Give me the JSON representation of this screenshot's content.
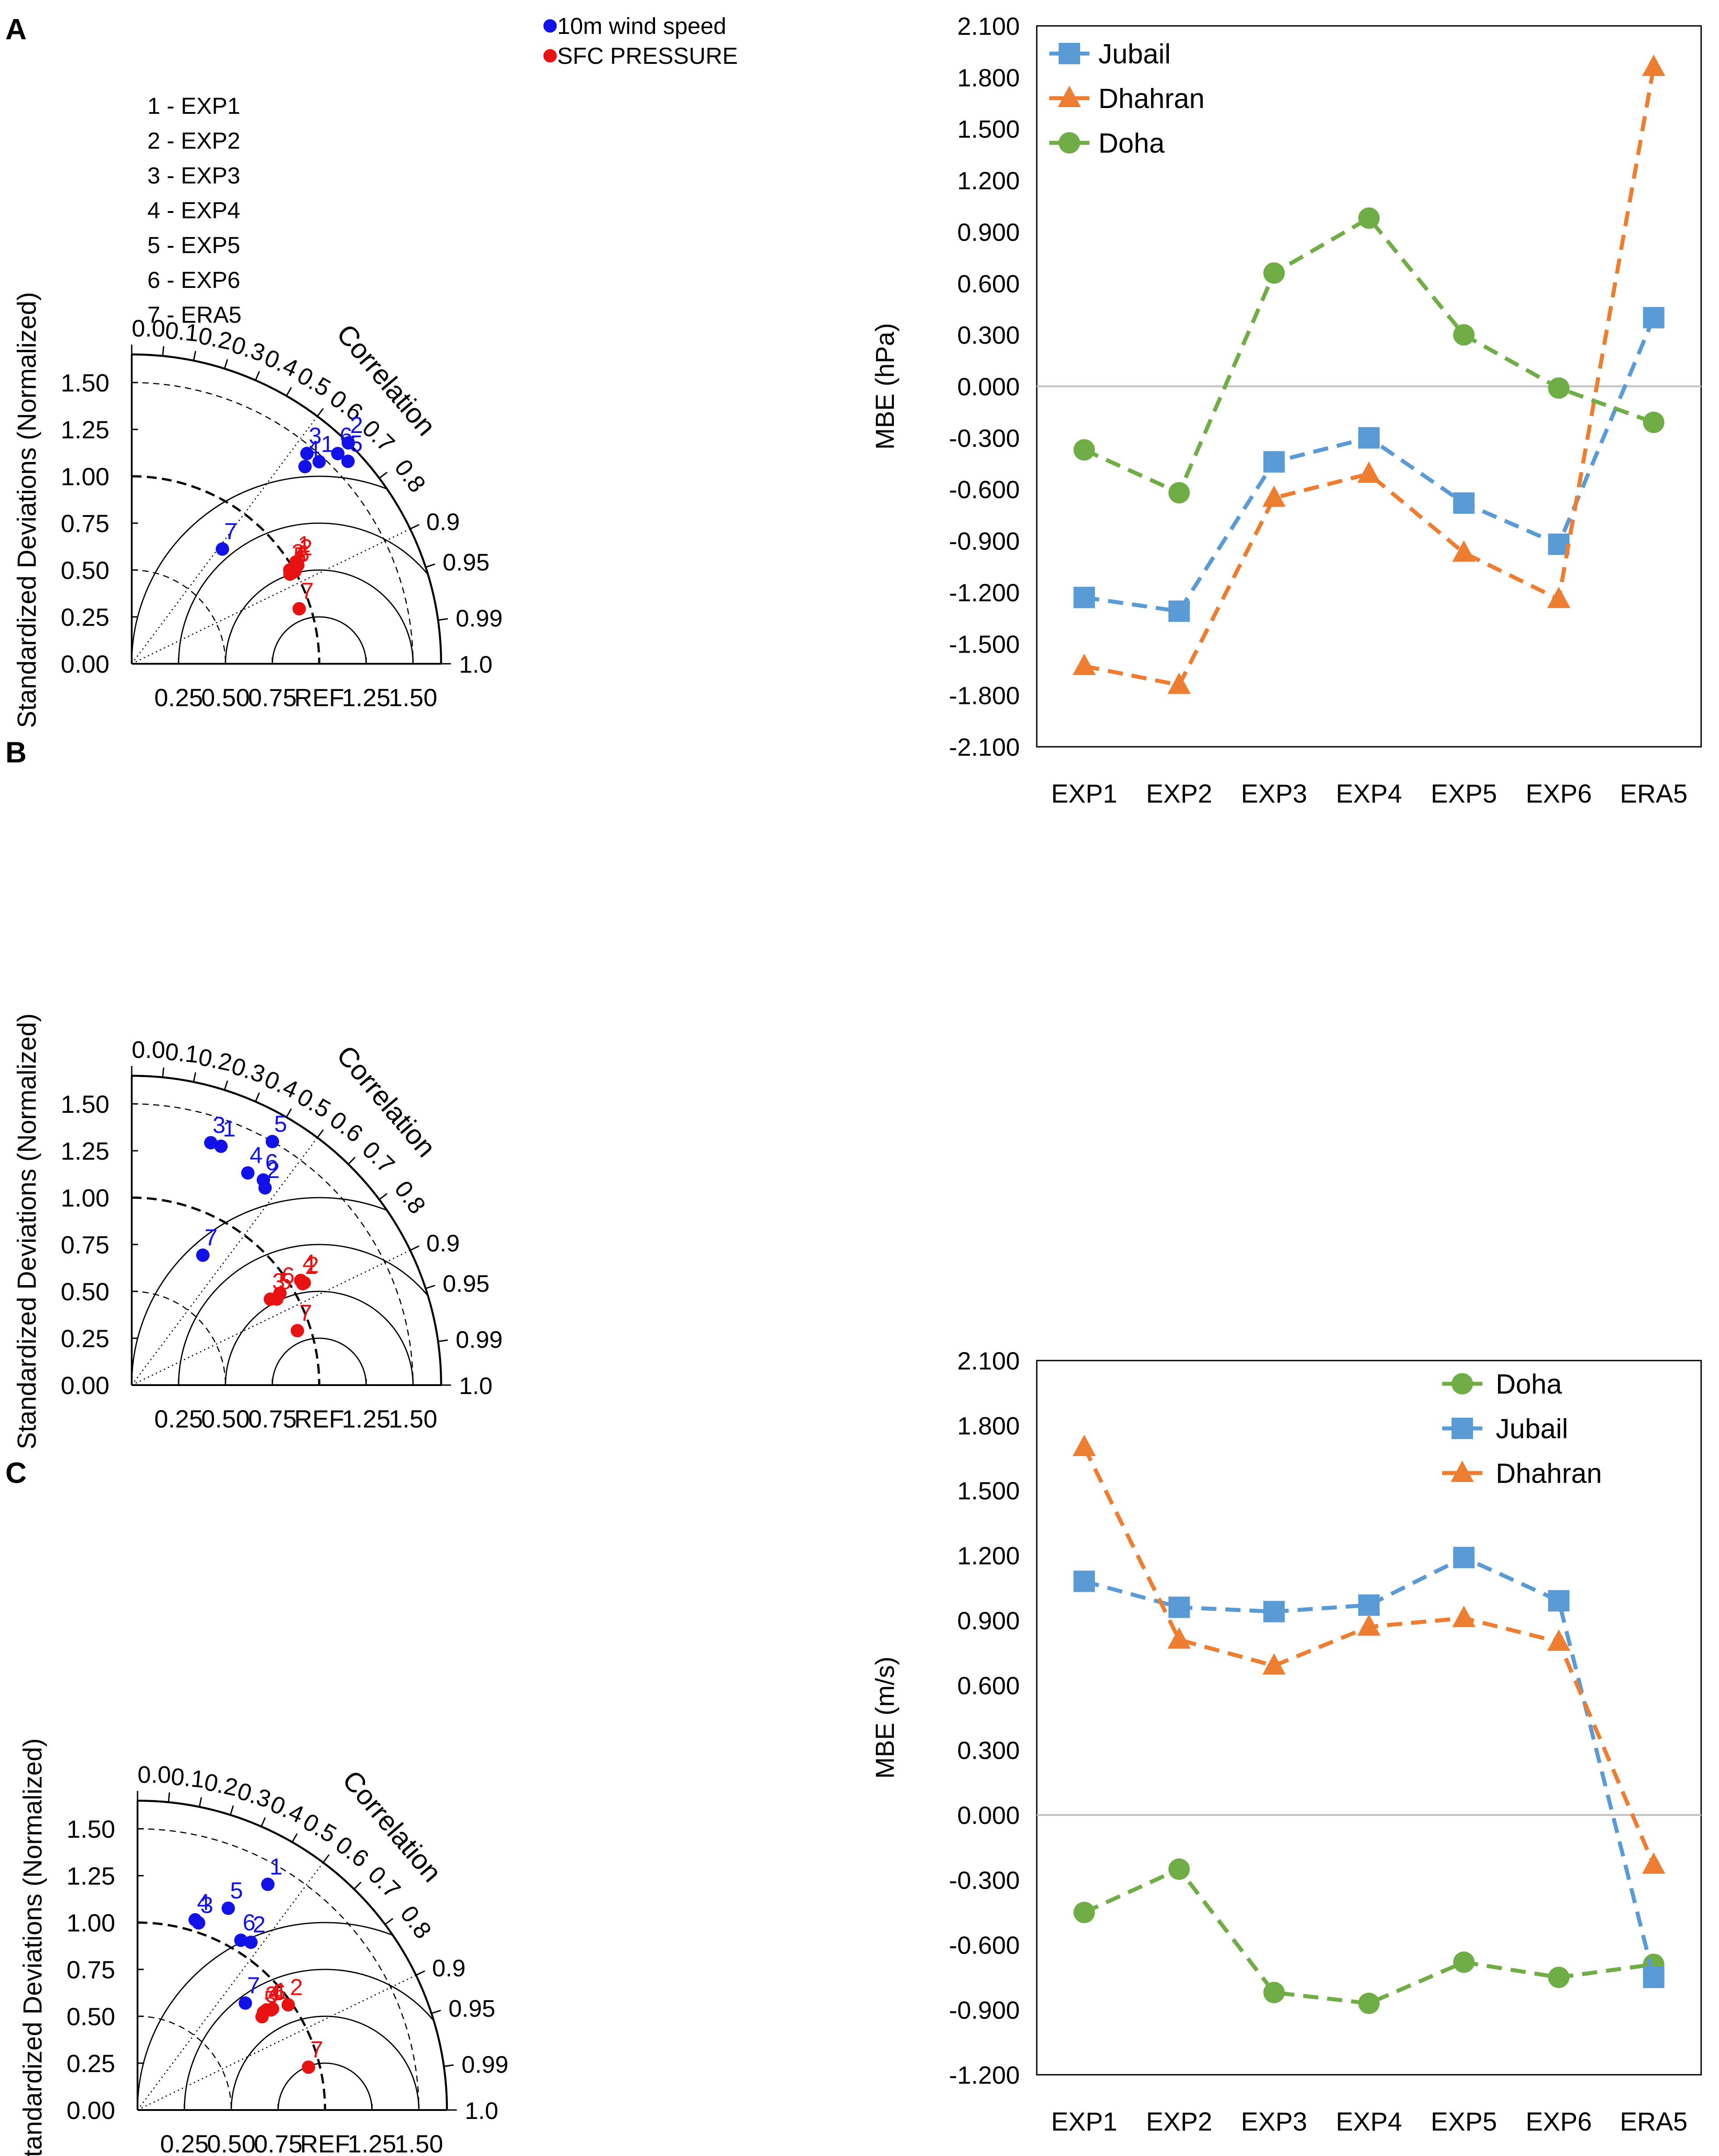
{
  "colors": {
    "wind": "#1212e8",
    "pressure": "#e81212",
    "jubail": "#5b9bd5",
    "dhahran": "#ed7d31",
    "doha": "#70ad47",
    "zero_line": "#bfbfbf"
  },
  "taylor_common": {
    "y_axis_label": "Standardized Deviations (Normalized)",
    "y_ticks": [
      "0.00",
      "0.25",
      "0.50",
      "0.75",
      "1.00",
      "1.25",
      "1.50"
    ],
    "x_ticks": [
      "0.25",
      "0.50",
      "0.75",
      "REF",
      "1.25",
      "1.50"
    ],
    "correlation_title": "Correlation",
    "correlation_ticks": [
      "0.0",
      "0.1",
      "0.2",
      "0.3",
      "0.4",
      "0.5",
      "0.6",
      "0.7",
      "0.8",
      "0.9",
      "0.95",
      "0.99",
      "1.0"
    ],
    "legend_wind": "10m wind speed",
    "legend_pressure": "SFC PRESSURE",
    "model_list": [
      "1 - EXP1",
      "2 - EXP2",
      "3 - EXP3",
      "4 - EXP4",
      "5 - EXP5",
      "6 - EXP6",
      "7 - ERA5"
    ]
  },
  "chart_data": [
    {
      "type": "scatter",
      "subtype": "taylor-diagram",
      "panel_label": "A",
      "series": [
        {
          "name": "10m wind speed",
          "points": [
            {
              "label": "1",
              "corr": 0.68,
              "sd": 1.47
            },
            {
              "label": "2",
              "corr": 0.7,
              "sd": 1.65
            },
            {
              "label": "3",
              "corr": 0.64,
              "sd": 1.46
            },
            {
              "label": "4",
              "corr": 0.66,
              "sd": 1.4
            },
            {
              "label": "5",
              "corr": 0.73,
              "sd": 1.58
            },
            {
              "label": "6",
              "corr": 0.7,
              "sd": 1.57
            },
            {
              "label": "7",
              "corr": 0.62,
              "sd": 0.78
            }
          ]
        },
        {
          "name": "SFC PRESSURE",
          "points": [
            {
              "label": "1",
              "corr": 0.85,
              "sd": 1.03
            },
            {
              "label": "2",
              "corr": 0.86,
              "sd": 1.03
            },
            {
              "label": "3",
              "corr": 0.86,
              "sd": 0.98
            },
            {
              "label": "4",
              "corr": 0.87,
              "sd": 0.97
            },
            {
              "label": "5",
              "corr": 0.87,
              "sd": 0.98
            },
            {
              "label": "6",
              "corr": 0.87,
              "sd": 1.0
            },
            {
              "label": "7",
              "corr": 0.95,
              "sd": 0.94
            }
          ]
        }
      ]
    },
    {
      "type": "scatter",
      "subtype": "taylor-diagram",
      "panel_label": "B",
      "series": [
        {
          "name": "10m wind speed",
          "points": [
            {
              "label": "1",
              "corr": 0.35,
              "sd": 1.36
            },
            {
              "label": "2",
              "corr": 0.56,
              "sd": 1.27
            },
            {
              "label": "3",
              "corr": 0.31,
              "sd": 1.36
            },
            {
              "label": "4",
              "corr": 0.48,
              "sd": 1.29
            },
            {
              "label": "5",
              "corr": 0.5,
              "sd": 1.5
            },
            {
              "label": "6",
              "corr": 0.54,
              "sd": 1.3
            },
            {
              "label": "7",
              "corr": 0.48,
              "sd": 0.79
            }
          ]
        },
        {
          "name": "SFC PRESSURE",
          "points": [
            {
              "label": "1",
              "corr": 0.86,
              "sd": 1.06
            },
            {
              "label": "2",
              "corr": 0.86,
              "sd": 1.07
            },
            {
              "label": "3",
              "corr": 0.85,
              "sd": 0.87
            },
            {
              "label": "4",
              "corr": 0.85,
              "sd": 1.06
            },
            {
              "label": "5",
              "corr": 0.86,
              "sd": 0.9
            },
            {
              "label": "6",
              "corr": 0.85,
              "sd": 0.93
            },
            {
              "label": "7",
              "corr": 0.95,
              "sd": 0.93
            }
          ]
        }
      ]
    },
    {
      "type": "scatter",
      "subtype": "taylor-diagram",
      "panel_label": "C",
      "series": [
        {
          "name": "10m wind speed",
          "points": [
            {
              "label": "1",
              "corr": 0.5,
              "sd": 1.39
            },
            {
              "label": "2",
              "corr": 0.56,
              "sd": 1.08
            },
            {
              "label": "3",
              "corr": 0.31,
              "sd": 1.05
            },
            {
              "label": "4",
              "corr": 0.29,
              "sd": 1.06
            },
            {
              "label": "5",
              "corr": 0.41,
              "sd": 1.18
            },
            {
              "label": "6",
              "corr": 0.52,
              "sd": 1.06
            },
            {
              "label": "7",
              "corr": 0.71,
              "sd": 0.81
            }
          ]
        },
        {
          "name": "SFC PRESSURE",
          "points": [
            {
              "label": "1",
              "corr": 0.8,
              "sd": 0.9
            },
            {
              "label": "2",
              "corr": 0.82,
              "sd": 0.98
            },
            {
              "label": "3",
              "corr": 0.79,
              "sd": 0.85
            },
            {
              "label": "4",
              "corr": 0.79,
              "sd": 0.87
            },
            {
              "label": "5",
              "corr": 0.8,
              "sd": 0.83
            },
            {
              "label": "6",
              "corr": 0.8,
              "sd": 0.89
            },
            {
              "label": "7",
              "corr": 0.97,
              "sd": 0.94
            }
          ]
        }
      ]
    },
    {
      "type": "line",
      "categories": [
        "EXP1",
        "EXP2",
        "EXP3",
        "EXP4",
        "EXP5",
        "EXP6",
        "ERA5"
      ],
      "ylabel": "MBE (hPa)",
      "ylim": [
        -2.1,
        2.1
      ],
      "ytick_step": 0.3,
      "legend_position": "top-left",
      "series": [
        {
          "name": "Jubail",
          "marker": "square",
          "values": [
            -1.23,
            -1.31,
            -0.44,
            -0.3,
            -0.68,
            -0.92,
            0.4
          ]
        },
        {
          "name": "Dhahran",
          "marker": "triangle",
          "values": [
            -1.63,
            -1.74,
            -0.65,
            -0.51,
            -0.97,
            -1.24,
            1.86
          ]
        },
        {
          "name": "Doha",
          "marker": "circle",
          "values": [
            -0.37,
            -0.62,
            0.66,
            0.98,
            0.3,
            -0.01,
            -0.21
          ]
        }
      ]
    },
    {
      "type": "line",
      "categories": [
        "EXP1",
        "EXP2",
        "EXP3",
        "EXP4",
        "EXP5",
        "EXP6",
        "ERA5"
      ],
      "ylabel": "MBE (m/s)",
      "ylim": [
        -1.2,
        2.1
      ],
      "ytick_step": 0.3,
      "legend_position": "top-right",
      "series": [
        {
          "name": "Doha",
          "marker": "circle",
          "values": [
            -0.45,
            -0.25,
            -0.82,
            -0.87,
            -0.68,
            -0.75,
            -0.69
          ]
        },
        {
          "name": "Jubail",
          "marker": "square",
          "values": [
            1.08,
            0.96,
            0.94,
            0.97,
            1.19,
            0.99,
            -0.75
          ]
        },
        {
          "name": "Dhahran",
          "marker": "triangle",
          "values": [
            1.7,
            0.81,
            0.69,
            0.87,
            0.91,
            0.8,
            -0.23
          ]
        }
      ]
    }
  ]
}
